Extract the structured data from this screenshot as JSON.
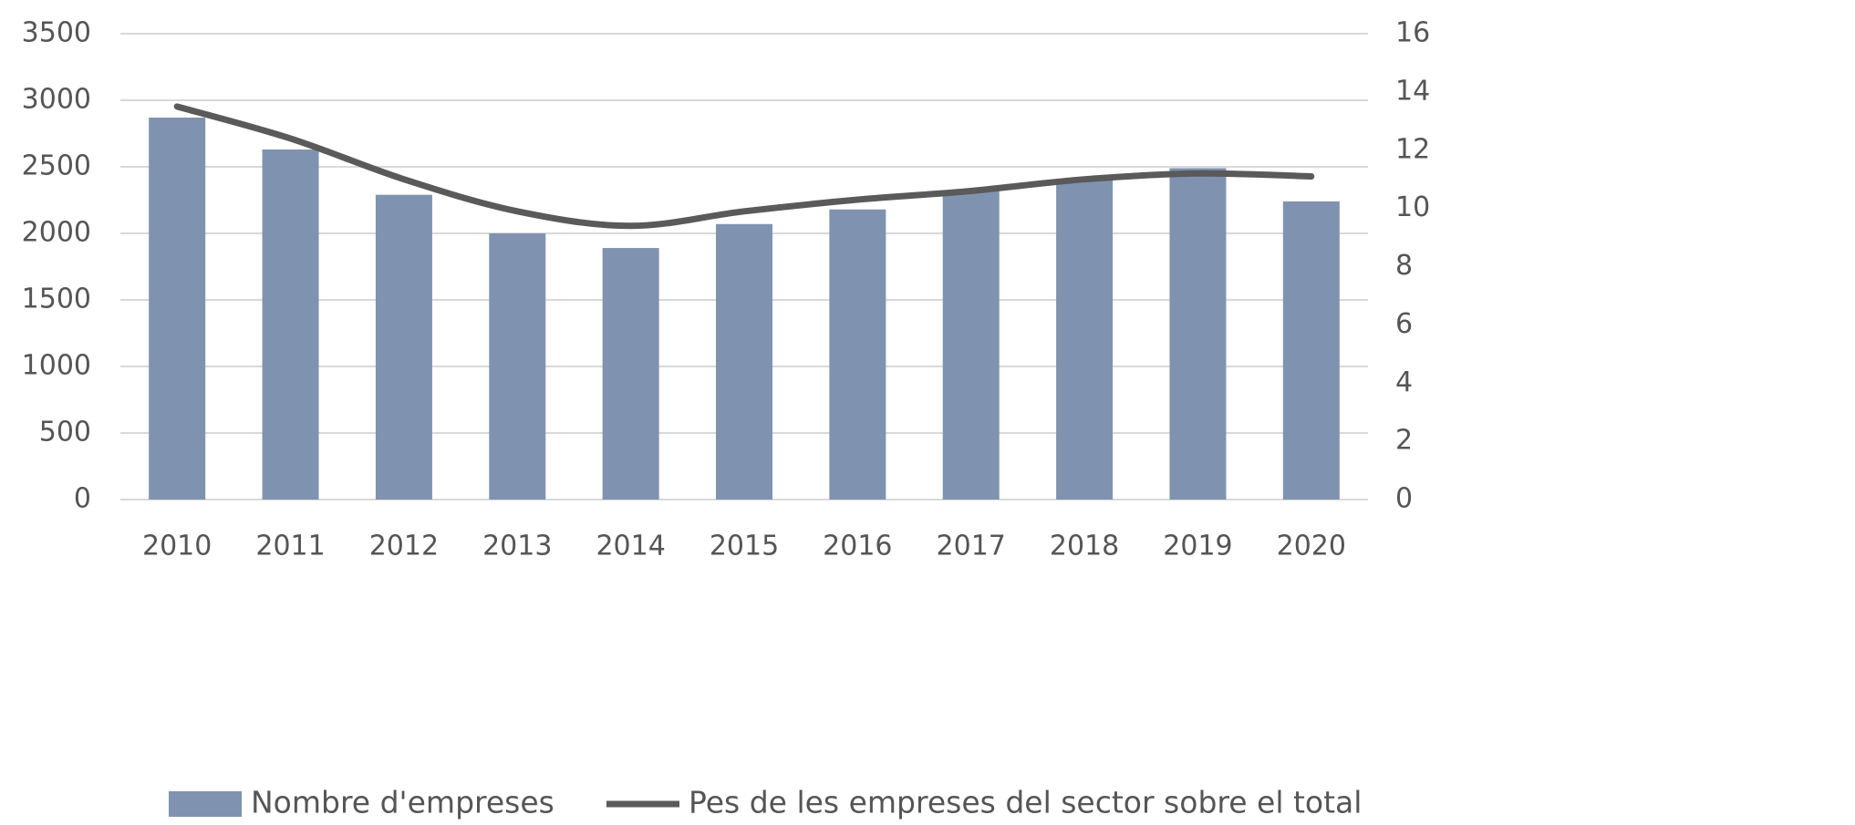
{
  "chart_data": {
    "type": "bar_line",
    "categories": [
      "2010",
      "2011",
      "2012",
      "2013",
      "2014",
      "2015",
      "2016",
      "2017",
      "2018",
      "2019",
      "2020"
    ],
    "series": [
      {
        "name": "Nombre d'empreses",
        "color": "#7f93b0",
        "values": [
          2870,
          2630,
          2290,
          2000,
          1890,
          2070,
          2180,
          2320,
          2410,
          2490,
          2240
        ]
      },
      {
        "name": "Pes de les empreses del sector sobre el total",
        "color": "#5a5a5a",
        "axis": "y2",
        "values": [
          13.5,
          12.4,
          11.0,
          9.9,
          9.4,
          9.9,
          10.3,
          10.6,
          11.0,
          11.2,
          11.1
        ]
      }
    ],
    "ylim": [
      0,
      3500
    ],
    "yticks": [
      0,
      500,
      1000,
      1500,
      2000,
      2500,
      3000,
      3500
    ],
    "y2lim": [
      0,
      16
    ],
    "y2ticks": [
      0,
      2,
      4,
      6,
      8,
      10,
      12,
      14,
      16
    ],
    "grid": true,
    "legend": "bottom"
  }
}
